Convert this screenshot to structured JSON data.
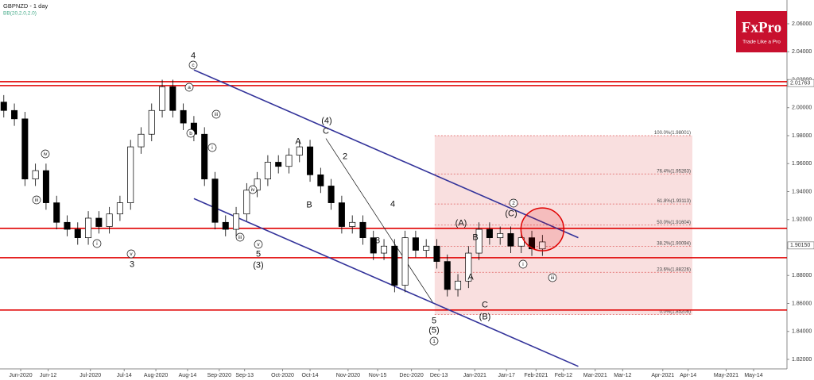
{
  "chart_data": {
    "type": "candlestick",
    "title": "GBPNZD - 1 day",
    "subtitle": "BB(20,2.0,2.0)",
    "x": [
      -8,
      -3,
      2,
      7,
      12,
      17,
      22,
      27,
      32,
      37,
      42,
      47,
      52,
      57,
      62,
      67,
      72,
      77,
      82,
      87,
      92,
      97,
      102,
      107,
      112,
      117,
      122,
      127,
      132,
      137,
      142,
      147,
      152,
      157,
      162,
      167,
      172,
      177,
      182,
      187,
      192,
      197,
      202,
      207,
      212,
      217,
      222,
      227,
      232,
      237,
      242,
      247
    ],
    "open": [
      2.004,
      1.998,
      1.992,
      1.949,
      1.955,
      1.932,
      1.918,
      1.913,
      1.907,
      1.921,
      1.915,
      1.924,
      1.932,
      1.972,
      1.981,
      1.998,
      2.015,
      1.998,
      1.989,
      1.981,
      1.949,
      1.918,
      1.913,
      1.924,
      1.941,
      1.949,
      1.961,
      1.958,
      1.966,
      1.972,
      1.952,
      1.944,
      1.932,
      1.915,
      1.918,
      1.907,
      1.896,
      1.901,
      1.873,
      1.907,
      1.898,
      1.901,
      1.89,
      1.87,
      1.876,
      1.896,
      1.913,
      1.907,
      1.91,
      1.901,
      1.907,
      1.899
    ],
    "high": [
      2.009,
      2.003,
      1.997,
      1.96,
      1.96,
      1.937,
      1.923,
      1.918,
      1.926,
      1.926,
      1.929,
      1.937,
      1.977,
      1.986,
      2.003,
      2.02,
      2.02,
      2.003,
      1.994,
      1.986,
      1.954,
      1.923,
      1.929,
      1.946,
      1.954,
      1.966,
      1.966,
      1.971,
      1.977,
      1.977,
      1.957,
      1.949,
      1.937,
      1.923,
      1.923,
      1.912,
      1.906,
      1.906,
      1.912,
      1.912,
      1.906,
      1.906,
      1.895,
      1.881,
      1.901,
      1.918,
      1.918,
      1.915,
      1.915,
      1.912,
      1.912,
      1.909
    ],
    "low": [
      1.993,
      1.987,
      1.944,
      1.944,
      1.927,
      1.913,
      1.908,
      1.902,
      1.902,
      1.91,
      1.91,
      1.919,
      1.927,
      1.967,
      1.976,
      1.993,
      1.993,
      1.984,
      1.976,
      1.944,
      1.913,
      1.908,
      1.908,
      1.919,
      1.936,
      1.944,
      1.953,
      1.953,
      1.961,
      1.947,
      1.939,
      1.927,
      1.91,
      1.91,
      1.902,
      1.891,
      1.891,
      1.868,
      1.868,
      1.893,
      1.893,
      1.885,
      1.865,
      1.865,
      1.871,
      1.891,
      1.902,
      1.902,
      1.896,
      1.896,
      1.894,
      1.894
    ],
    "close": [
      1.998,
      1.992,
      1.949,
      1.955,
      1.932,
      1.918,
      1.913,
      1.907,
      1.921,
      1.915,
      1.924,
      1.932,
      1.972,
      1.981,
      1.998,
      2.015,
      1.998,
      1.989,
      1.981,
      1.949,
      1.918,
      1.913,
      1.924,
      1.941,
      1.949,
      1.961,
      1.958,
      1.966,
      1.972,
      1.952,
      1.944,
      1.932,
      1.915,
      1.918,
      1.907,
      1.896,
      1.901,
      1.873,
      1.907,
      1.898,
      1.901,
      1.89,
      1.87,
      1.876,
      1.896,
      1.913,
      1.907,
      1.91,
      1.901,
      1.907,
      1.899,
      1.904
    ],
    "up_color": "#ffffff",
    "down_color": "#000000",
    "xlim": [
      -9.8,
      362.8
    ],
    "ylim": [
      1.8132,
      2.077
    ],
    "xticks": [
      {
        "value": 0,
        "label": "Jun-2020"
      },
      {
        "value": 13,
        "label": "Jun-12"
      },
      {
        "value": 33,
        "label": "Jul-2020"
      },
      {
        "value": 49,
        "label": "Jul-14"
      },
      {
        "value": 64,
        "label": "Aug-2020"
      },
      {
        "value": 79,
        "label": "Aug-14"
      },
      {
        "value": 94,
        "label": "Sep-2020"
      },
      {
        "value": 106,
        "label": "Sep-13"
      },
      {
        "value": 124,
        "label": "Oct-2020"
      },
      {
        "value": 137,
        "label": "Oct-14"
      },
      {
        "value": 155,
        "label": "Nov-2020"
      },
      {
        "value": 169,
        "label": "Nov-15"
      },
      {
        "value": 185,
        "label": "Dec-2020"
      },
      {
        "value": 198,
        "label": "Dec-13"
      },
      {
        "value": 215,
        "label": "Jan-2021"
      },
      {
        "value": 230,
        "label": "Jan-17"
      },
      {
        "value": 244,
        "label": "Feb-2021"
      },
      {
        "value": 257,
        "label": "Feb-12"
      },
      {
        "value": 272,
        "label": "Mar-2021"
      },
      {
        "value": 285,
        "label": "Mar-12"
      },
      {
        "value": 304,
        "label": "Apr-2021"
      },
      {
        "value": 316,
        "label": "Apr-14"
      },
      {
        "value": 334,
        "label": "May-2021"
      },
      {
        "value": 347,
        "label": "May-14"
      }
    ],
    "yticks": [
      {
        "value": 1.82,
        "label": "1.82000"
      },
      {
        "value": 1.84,
        "label": "1.84000"
      },
      {
        "value": 1.86,
        "label": "1.86000"
      },
      {
        "value": 1.88,
        "label": "1.88000"
      },
      {
        "value": 1.9,
        "label": "1.90000"
      },
      {
        "value": 1.92,
        "label": "1.92000"
      },
      {
        "value": 1.94,
        "label": "1.94000"
      },
      {
        "value": 1.96,
        "label": "1.96000"
      },
      {
        "value": 1.98,
        "label": "1.98000"
      },
      {
        "value": 2.0,
        "label": "2.00000"
      },
      {
        "value": 2.02,
        "label": "2.02000"
      },
      {
        "value": 2.04,
        "label": "2.04000"
      },
      {
        "value": 2.06,
        "label": "2.06000"
      }
    ],
    "levels": [
      2.0186,
      2.0158,
      1.9137,
      1.8927,
      1.8553
    ],
    "level_color": "#e00000",
    "price_markers": [
      {
        "value": 2.01763,
        "label": "2.01763"
      },
      {
        "value": 1.9015,
        "label": "1.90150"
      }
    ],
    "fib": {
      "xlim": [
        196,
        318
      ],
      "color": "#e06060",
      "levels": [
        {
          "value": 1.98001,
          "label": "100.0%(1.98001)"
        },
        {
          "value": 1.95263,
          "label": "76.4%(1.95263)"
        },
        {
          "value": 1.93113,
          "label": "61.8%(1.93113)"
        },
        {
          "value": 1.91604,
          "label": "50.0%(1.91604)"
        },
        {
          "value": 1.90094,
          "label": "38.2%(1.90094)"
        },
        {
          "value": 1.88226,
          "label": "23.6%(1.88226)"
        },
        {
          "value": 1.85206,
          "label": "0.0%(1.85206)"
        }
      ]
    },
    "trendlines": [
      {
        "x": [
          82,
          264
        ],
        "y": [
          2.027,
          1.907
        ],
        "color": "#33339a"
      },
      {
        "x": [
          82,
          264
        ],
        "y": [
          1.935,
          1.815
        ],
        "color": "#33339a"
      },
      {
        "x": [
          144.5,
          195
        ],
        "y": [
          1.978,
          1.861
        ],
        "color": "#111111"
      }
    ],
    "highlight": {
      "x": 247,
      "y": 1.913,
      "color": "#e00000"
    },
    "wave_labels": [
      {
        "text": "4",
        "circled": false
      },
      {
        "text": "c",
        "circled": true
      },
      {
        "text": "(4)",
        "circled": false
      },
      {
        "text": "C",
        "circled": false
      },
      {
        "text": "A",
        "circled": false
      },
      {
        "text": "B",
        "circled": false
      },
      {
        "text": "2",
        "circled": false
      },
      {
        "text": "4",
        "circled": false
      },
      {
        "text": "3",
        "circled": false
      },
      {
        "text": "5",
        "circled": false
      },
      {
        "text": "(5)",
        "circled": false
      },
      {
        "text": "1",
        "circled": true
      },
      {
        "text": "(A)",
        "circled": false
      },
      {
        "text": "B",
        "circled": false
      },
      {
        "text": "A",
        "circled": false
      },
      {
        "text": "C",
        "circled": false
      },
      {
        "text": "(B)",
        "circled": false
      },
      {
        "text": "(C)",
        "circled": false
      },
      {
        "text": "2",
        "circled": true
      },
      {
        "text": "i",
        "circled": true
      },
      {
        "text": "iii",
        "circled": true
      },
      {
        "text": "3",
        "circled": false
      },
      {
        "text": "v",
        "circled": true
      },
      {
        "text": "5",
        "circled": false
      },
      {
        "text": "(3)",
        "circled": false
      },
      {
        "text": "v",
        "circled": true
      },
      {
        "text": "iii",
        "circled": true
      },
      {
        "text": "iv",
        "circled": true
      },
      {
        "text": "iii",
        "circled": true
      },
      {
        "text": "i",
        "circled": true
      },
      {
        "text": "b",
        "circled": true
      },
      {
        "text": "a",
        "circled": true
      },
      {
        "text": "iv",
        "circled": true
      },
      {
        "text": "iii",
        "circled": true
      },
      {
        "text": "i",
        "circled": true
      }
    ],
    "logo": {
      "name": "FxPro",
      "tagline": "Trade Like a Pro"
    }
  }
}
